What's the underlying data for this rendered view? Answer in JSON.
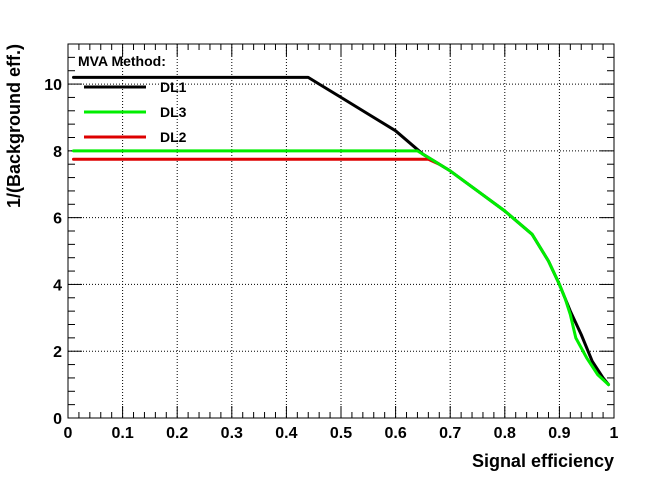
{
  "chart_data": {
    "type": "line",
    "xlabel": "Signal efficiency",
    "ylabel": "1/(Background eff.)",
    "xlim": [
      0,
      1
    ],
    "ylim": [
      0,
      11.2
    ],
    "x_ticks": [
      "0",
      "0.1",
      "0.2",
      "0.3",
      "0.4",
      "0.5",
      "0.6",
      "0.7",
      "0.8",
      "0.9",
      "1"
    ],
    "y_ticks": [
      "0",
      "2",
      "4",
      "6",
      "8",
      "10"
    ],
    "grid": true,
    "legend": {
      "title": "MVA Method:",
      "placement": "top-left"
    },
    "series": [
      {
        "name": "DL1",
        "color": "#000000",
        "x": [
          0.01,
          0.44,
          0.46,
          0.5,
          0.55,
          0.6,
          0.65,
          0.7,
          0.75,
          0.8,
          0.85,
          0.88,
          0.9,
          0.92,
          0.94,
          0.96,
          0.98,
          0.99
        ],
        "y": [
          10.2,
          10.2,
          10.0,
          9.6,
          9.1,
          8.6,
          7.9,
          7.4,
          6.8,
          6.2,
          5.5,
          4.7,
          4.0,
          3.2,
          2.5,
          1.7,
          1.2,
          1.0
        ]
      },
      {
        "name": "DL3",
        "color": "#00ee00",
        "x": [
          0.01,
          0.64,
          0.66,
          0.7,
          0.75,
          0.8,
          0.85,
          0.88,
          0.9,
          0.91,
          0.92,
          0.93,
          0.95,
          0.97,
          0.99
        ],
        "y": [
          8.0,
          8.0,
          7.8,
          7.4,
          6.8,
          6.2,
          5.5,
          4.7,
          4.0,
          3.6,
          3.1,
          2.4,
          1.8,
          1.3,
          1.0
        ]
      },
      {
        "name": "DL2",
        "color": "#dd0000",
        "x": [
          0.01,
          0.66,
          0.68
        ],
        "y": [
          7.75,
          7.75,
          7.6
        ]
      }
    ]
  }
}
